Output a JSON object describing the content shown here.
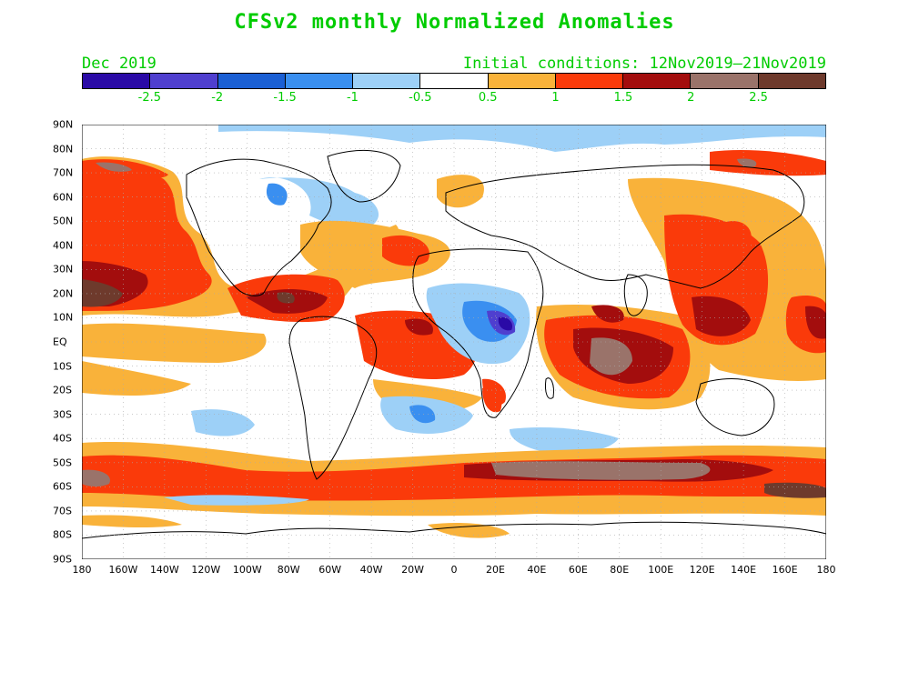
{
  "title": "CFSv2 monthly Normalized Anomalies",
  "valid_month": "Dec 2019",
  "initial_conditions": "Initial conditions: 12Nov2019–21Nov2019",
  "colorbar": {
    "colors": [
      "#2a0aa6",
      "#4f3fcf",
      "#1a5fd4",
      "#3a8ff0",
      "#9dd0f7",
      "#ffffff",
      "#f9b23a",
      "#fa3a0a",
      "#a30d0d",
      "#9a736a",
      "#6e3a2c"
    ],
    "labels": [
      "-2.5",
      "-2",
      "-1.5",
      "-1",
      "-0.5",
      "0.5",
      "1",
      "1.5",
      "2",
      "2.5"
    ]
  },
  "lat_labels": [
    "90N",
    "80N",
    "70N",
    "60N",
    "50N",
    "40N",
    "30N",
    "20N",
    "10N",
    "EQ",
    "10S",
    "20S",
    "30S",
    "40S",
    "50S",
    "60S",
    "70S",
    "80S",
    "90S"
  ],
  "lon_labels": [
    "180",
    "160W",
    "140W",
    "120W",
    "100W",
    "80W",
    "60W",
    "40W",
    "20W",
    "0",
    "20E",
    "40E",
    "60E",
    "80E",
    "100E",
    "120E",
    "140E",
    "160E",
    "180"
  ],
  "colors": {
    "title": "#00cc00",
    "ocean_neutral": "#ffffff",
    "coast": "#000000",
    "grid": "#aaaaaa"
  }
}
